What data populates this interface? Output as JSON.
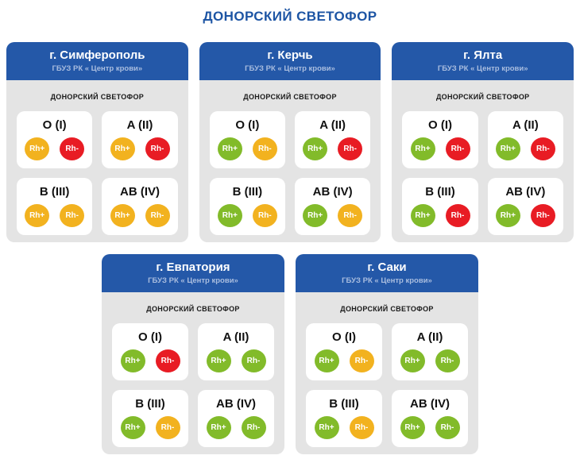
{
  "page_title": "ДОНОРСКИЙ СВЕТОФОР",
  "labels": {
    "org_subtitle": "ГБУЗ РК « Центр крови»",
    "section": "ДОНОРСКИЙ СВЕТОФОР",
    "rh_plus": "Rh+",
    "rh_minus": "Rh-"
  },
  "colors": {
    "title_text": "#1d55a4",
    "header_bg": "#2458a8",
    "header_subtitle": "#a9bddf",
    "body_bg": "#e4e4e4",
    "block_bg": "#ffffff",
    "green": "#82bb2a",
    "yellow": "#f2b21f",
    "red": "#e81c24"
  },
  "cards": [
    {
      "city": "г. Симферополь",
      "groups": [
        {
          "name": "O (I)",
          "rh_plus": "yellow",
          "rh_minus": "red"
        },
        {
          "name": "A (II)",
          "rh_plus": "yellow",
          "rh_minus": "red"
        },
        {
          "name": "B (III)",
          "rh_plus": "yellow",
          "rh_minus": "yellow"
        },
        {
          "name": "AB (IV)",
          "rh_plus": "yellow",
          "rh_minus": "yellow"
        }
      ]
    },
    {
      "city": "г. Керчь",
      "groups": [
        {
          "name": "O (I)",
          "rh_plus": "green",
          "rh_minus": "yellow"
        },
        {
          "name": "A (II)",
          "rh_plus": "green",
          "rh_minus": "red"
        },
        {
          "name": "B (III)",
          "rh_plus": "green",
          "rh_minus": "yellow"
        },
        {
          "name": "AB (IV)",
          "rh_plus": "green",
          "rh_minus": "yellow"
        }
      ]
    },
    {
      "city": "г. Ялта",
      "groups": [
        {
          "name": "O (I)",
          "rh_plus": "green",
          "rh_minus": "red"
        },
        {
          "name": "A (II)",
          "rh_plus": "green",
          "rh_minus": "red"
        },
        {
          "name": "B (III)",
          "rh_plus": "green",
          "rh_minus": "red"
        },
        {
          "name": "AB (IV)",
          "rh_plus": "green",
          "rh_minus": "red"
        }
      ]
    },
    {
      "city": "г. Евпатория",
      "groups": [
        {
          "name": "O (I)",
          "rh_plus": "green",
          "rh_minus": "red"
        },
        {
          "name": "A (II)",
          "rh_plus": "green",
          "rh_minus": "green"
        },
        {
          "name": "B (III)",
          "rh_plus": "green",
          "rh_minus": "yellow"
        },
        {
          "name": "AB (IV)",
          "rh_plus": "green",
          "rh_minus": "green"
        }
      ]
    },
    {
      "city": "г. Саки",
      "groups": [
        {
          "name": "O (I)",
          "rh_plus": "green",
          "rh_minus": "yellow"
        },
        {
          "name": "A (II)",
          "rh_plus": "green",
          "rh_minus": "green"
        },
        {
          "name": "B (III)",
          "rh_plus": "green",
          "rh_minus": "yellow"
        },
        {
          "name": "AB (IV)",
          "rh_plus": "green",
          "rh_minus": "green"
        }
      ]
    }
  ]
}
